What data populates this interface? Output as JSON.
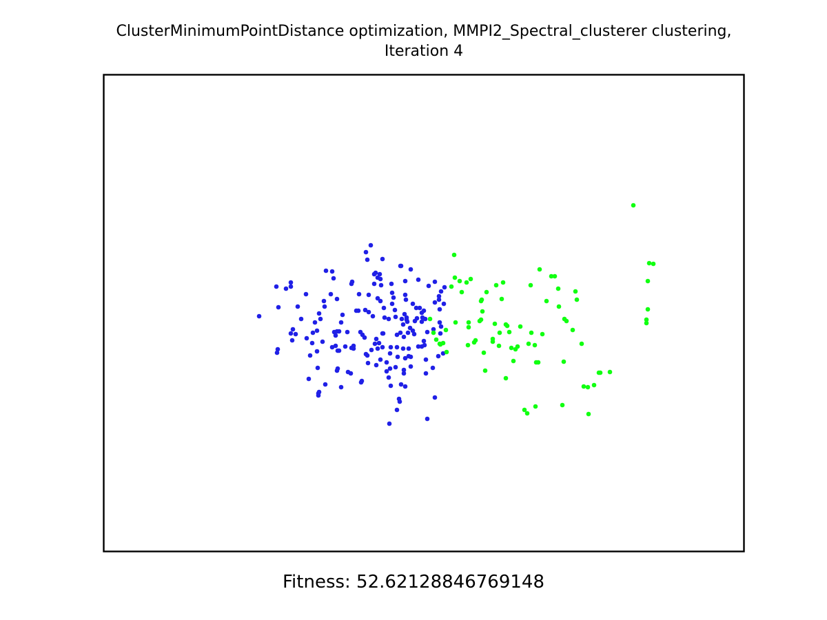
{
  "title_line_1": "ClusterMinimumPointDistance optimization, MMPI2_Spectral_clusterer clustering,",
  "title_line_2": "Iteration 4",
  "fitness_label": "Fitness: 52.62128846769148",
  "colors": {
    "cluster_blue": "#2020e6",
    "cluster_green": "#11ff11",
    "frame": "#000000"
  },
  "chart_data": {
    "type": "scatter",
    "title": "ClusterMinimumPointDistance optimization, MMPI2_Spectral_clusterer clustering, Iteration 4",
    "xlabel": "Fitness: 52.62128846769148",
    "ylabel": "",
    "axis_ticks": "none",
    "xlim": [
      0,
      930
    ],
    "ylim": [
      0,
      693
    ],
    "grid": false,
    "series": [
      {
        "color": "#2020e6",
        "points": [
          [
            226,
            351
          ],
          [
            254,
            338
          ],
          [
            251,
            308
          ],
          [
            265,
            311
          ],
          [
            272,
            302
          ],
          [
            287,
            355
          ],
          [
            279,
            377
          ],
          [
            307,
            360
          ],
          [
            295,
            383
          ],
          [
            298,
            442
          ],
          [
            303,
            390
          ],
          [
            304,
            375
          ],
          [
            310,
            402
          ],
          [
            311,
            426
          ],
          [
            312,
            463
          ],
          [
            315,
            355
          ],
          [
            313,
            461
          ],
          [
            318,
            388
          ],
          [
            321,
            337
          ],
          [
            320,
            329
          ],
          [
            323,
            285
          ],
          [
            330,
            319
          ],
          [
            332,
            286
          ],
          [
            334,
            296
          ],
          [
            335,
            374
          ],
          [
            337,
            394
          ],
          [
            339,
            373
          ],
          [
            340,
            401
          ],
          [
            342,
            373
          ],
          [
            345,
            360
          ],
          [
            347,
            349
          ],
          [
            337,
            379
          ],
          [
            332,
            396
          ],
          [
            339,
            430
          ],
          [
            339,
            326
          ],
          [
            351,
            395
          ],
          [
            354,
            374
          ],
          [
            355,
            432
          ],
          [
            360,
            304
          ],
          [
            361,
            301
          ],
          [
            363,
            398
          ],
          [
            360,
            397
          ],
          [
            367,
            343
          ],
          [
            371,
            319
          ],
          [
            373,
            374
          ],
          [
            376,
            378
          ],
          [
            380,
            342
          ],
          [
            381,
            406
          ],
          [
            383,
            269
          ],
          [
            381,
            258
          ],
          [
            385,
            320
          ],
          [
            385,
            345
          ],
          [
            388,
            248
          ],
          [
            391,
            351
          ],
          [
            393,
            304
          ],
          [
            393,
            290
          ],
          [
            395,
            288
          ],
          [
            396,
            422
          ],
          [
            396,
            384
          ],
          [
            398,
            295
          ],
          [
            398,
            325
          ],
          [
            401,
            290
          ],
          [
            402,
            297
          ],
          [
            402,
            329
          ],
          [
            403,
            306
          ],
          [
            405,
            268
          ],
          [
            405,
            396
          ],
          [
            405,
            376
          ],
          [
            407,
            339
          ],
          [
            408,
            353
          ],
          [
            411,
            418
          ],
          [
            411,
            431
          ],
          [
            414,
            355
          ],
          [
            416,
            405
          ],
          [
            417,
            396
          ],
          [
            418,
            304
          ],
          [
            419,
            317
          ],
          [
            419,
            333
          ],
          [
            421,
            324
          ],
          [
            423,
            342
          ],
          [
            424,
            352
          ],
          [
            426,
            378
          ],
          [
            426,
            396
          ],
          [
            430,
            475
          ],
          [
            431,
            375
          ],
          [
            431,
            278
          ],
          [
            432,
            278
          ],
          [
            433,
            355
          ],
          [
            435,
            398
          ],
          [
            436,
            429
          ],
          [
            438,
            320
          ],
          [
            437,
            348
          ],
          [
            438,
            412
          ],
          [
            439,
            327
          ],
          [
            440,
            353
          ],
          [
            440,
            356
          ],
          [
            438,
            300
          ],
          [
            435,
            363
          ],
          [
            436,
            381
          ],
          [
            441,
            359
          ],
          [
            442,
            375
          ],
          [
            443,
            398
          ],
          [
            445,
            368
          ],
          [
            446,
            424
          ],
          [
            446,
            283
          ],
          [
            449,
            333
          ],
          [
            449,
            372
          ],
          [
            451,
            377
          ],
          [
            454,
            339
          ],
          [
            457,
            298
          ],
          [
            457,
            395
          ],
          [
            459,
            339
          ],
          [
            462,
            346
          ],
          [
            462,
            359
          ],
          [
            466,
            393
          ],
          [
            465,
            343
          ],
          [
            465,
            387
          ],
          [
            467,
            355
          ],
          [
            468,
            434
          ],
          [
            470,
            500
          ],
          [
            481,
            469
          ],
          [
            487,
            322
          ],
          [
            488,
            360
          ],
          [
            481,
            331
          ],
          [
            487,
            327
          ],
          [
            488,
            341
          ],
          [
            490,
            366
          ],
          [
            493,
            405
          ],
          [
            494,
            333
          ],
          [
            495,
            309
          ],
          [
            479,
            370
          ],
          [
            472,
            307
          ],
          [
            489,
            376
          ],
          [
            427,
            410
          ],
          [
            415,
            507
          ],
          [
            478,
            426
          ],
          [
            486,
            409
          ],
          [
            490,
            315
          ],
          [
            481,
            301
          ],
          [
            452,
            358
          ],
          [
            468,
            414
          ],
          [
            462,
            395
          ],
          [
            470,
            374
          ],
          [
            446,
            410
          ],
          [
            443,
            409
          ],
          [
            438,
            453
          ],
          [
            436,
            434
          ],
          [
            463,
            353
          ],
          [
            455,
            354
          ],
          [
            417,
            452
          ],
          [
            424,
            425
          ],
          [
            414,
            440
          ],
          [
            416,
            427
          ],
          [
            363,
            394
          ],
          [
            383,
            408
          ],
          [
            384,
            419
          ],
          [
            379,
            382
          ],
          [
            389,
            400
          ],
          [
            394,
            391
          ],
          [
            398,
            398
          ],
          [
            400,
            390
          ],
          [
            402,
            414
          ],
          [
            429,
            471
          ],
          [
            432,
            450
          ],
          [
            426,
            487
          ],
          [
            374,
            447
          ],
          [
            375,
            445
          ],
          [
            345,
            454
          ],
          [
            322,
            450
          ],
          [
            274,
            386
          ],
          [
            272,
            376
          ],
          [
            252,
            404
          ],
          [
            253,
            399
          ],
          [
            272,
            308
          ],
          [
            342,
            401
          ],
          [
            313,
            347
          ],
          [
            359,
            434
          ],
          [
            340,
            427
          ],
          [
            282,
            337
          ],
          [
            275,
            370
          ],
          [
            312,
            466
          ],
          [
            310,
            372
          ],
          [
            294,
            319
          ],
          [
            300,
            408
          ],
          [
            370,
            343
          ],
          [
            406,
            376
          ]
        ]
      },
      {
        "color": "#11ff11",
        "points": [
          [
            489,
            392
          ],
          [
            474,
            355
          ],
          [
            479,
            375
          ],
          [
            483,
            385
          ],
          [
            488,
            391
          ],
          [
            493,
            390
          ],
          [
            497,
            371
          ],
          [
            498,
            403
          ],
          [
            505,
            308
          ],
          [
            509,
            262
          ],
          [
            510,
            295
          ],
          [
            511,
            360
          ],
          [
            517,
            300
          ],
          [
            520,
            316
          ],
          [
            527,
            302
          ],
          [
            530,
            367
          ],
          [
            529,
            393
          ],
          [
            530,
            360
          ],
          [
            533,
            297
          ],
          [
            538,
            389
          ],
          [
            540,
            386
          ],
          [
            546,
            358
          ],
          [
            548,
            356
          ],
          [
            548,
            329
          ],
          [
            549,
            327
          ],
          [
            550,
            344
          ],
          [
            552,
            404
          ],
          [
            554,
            430
          ],
          [
            556,
            316
          ],
          [
            565,
            388
          ],
          [
            565,
            384
          ],
          [
            568,
            362
          ],
          [
            570,
            306
          ],
          [
            574,
            394
          ],
          [
            575,
            375
          ],
          [
            578,
            326
          ],
          [
            580,
            302
          ],
          [
            584,
            363
          ],
          [
            584,
            441
          ],
          [
            586,
            365
          ],
          [
            589,
            374
          ],
          [
            592,
            397
          ],
          [
            595,
            416
          ],
          [
            598,
            399
          ],
          [
            601,
            395
          ],
          [
            605,
            366
          ],
          [
            611,
            487
          ],
          [
            615,
            492
          ],
          [
            617,
            391
          ],
          [
            620,
            306
          ],
          [
            621,
            375
          ],
          [
            626,
            393
          ],
          [
            627,
            482
          ],
          [
            628,
            418
          ],
          [
            631,
            418
          ],
          [
            633,
            283
          ],
          [
            637,
            377
          ],
          [
            643,
            329
          ],
          [
            650,
            293
          ],
          [
            655,
            293
          ],
          [
            660,
            311
          ],
          [
            661,
            337
          ],
          [
            666,
            480
          ],
          [
            669,
            355
          ],
          [
            668,
            417
          ],
          [
            672,
            358
          ],
          [
            681,
            371
          ],
          [
            685,
            315
          ],
          [
            687,
            327
          ],
          [
            694,
            391
          ],
          [
            697,
            453
          ],
          [
            703,
            454
          ],
          [
            704,
            493
          ],
          [
            712,
            451
          ],
          [
            719,
            433
          ],
          [
            721,
            433
          ],
          [
            735,
            432
          ],
          [
            788,
            356
          ],
          [
            790,
            300
          ],
          [
            792,
            274
          ],
          [
            798,
            275
          ],
          [
            769,
            190
          ],
          [
            790,
            341
          ],
          [
            788,
            361
          ]
        ]
      }
    ]
  }
}
